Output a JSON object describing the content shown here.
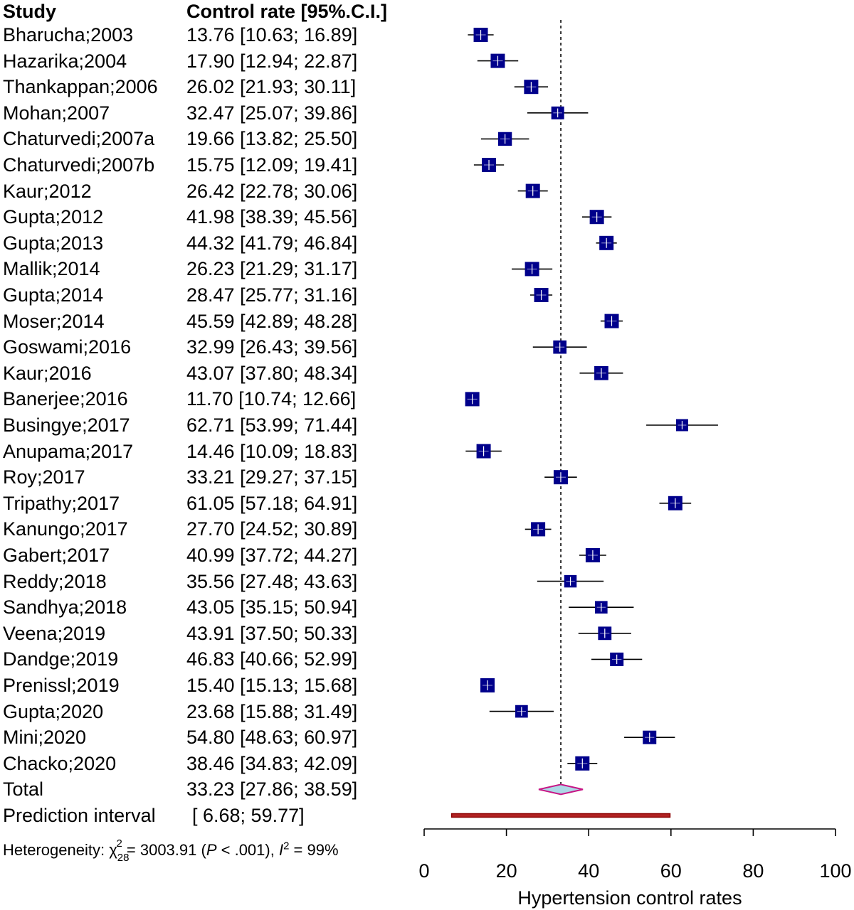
{
  "headers": {
    "study": "Study",
    "ci": "Control rate [95%.C.I.]"
  },
  "chart_data": {
    "type": "forest",
    "xlabel": "Hypertension control rates",
    "xlim": [
      0,
      100
    ],
    "xticks": [
      0,
      20,
      40,
      60,
      80,
      100
    ],
    "xtick_labels": [
      "0",
      "20",
      "40",
      "60",
      "80",
      "100"
    ],
    "reference_line": 33.23,
    "studies": [
      {
        "label": "Bharucha;2003",
        "est": 13.76,
        "lo": 10.63,
        "hi": 16.89,
        "ci_text": "13.76 [10.63; 16.89]"
      },
      {
        "label": "Hazarika;2004",
        "est": 17.9,
        "lo": 12.94,
        "hi": 22.87,
        "ci_text": "17.90 [12.94; 22.87]"
      },
      {
        "label": "Thankappan;2006",
        "est": 26.02,
        "lo": 21.93,
        "hi": 30.11,
        "ci_text": "26.02 [21.93; 30.11]"
      },
      {
        "label": "Mohan;2007",
        "est": 32.47,
        "lo": 25.07,
        "hi": 39.86,
        "ci_text": "32.47 [25.07; 39.86]"
      },
      {
        "label": "Chaturvedi;2007a",
        "est": 19.66,
        "lo": 13.82,
        "hi": 25.5,
        "ci_text": "19.66 [13.82; 25.50]"
      },
      {
        "label": "Chaturvedi;2007b",
        "est": 15.75,
        "lo": 12.09,
        "hi": 19.41,
        "ci_text": "15.75 [12.09; 19.41]"
      },
      {
        "label": "Kaur;2012",
        "est": 26.42,
        "lo": 22.78,
        "hi": 30.06,
        "ci_text": "26.42 [22.78; 30.06]"
      },
      {
        "label": "Gupta;2012",
        "est": 41.98,
        "lo": 38.39,
        "hi": 45.56,
        "ci_text": "41.98 [38.39; 45.56]"
      },
      {
        "label": "Gupta;2013",
        "est": 44.32,
        "lo": 41.79,
        "hi": 46.84,
        "ci_text": "44.32 [41.79; 46.84]"
      },
      {
        "label": "Mallik;2014",
        "est": 26.23,
        "lo": 21.29,
        "hi": 31.17,
        "ci_text": "26.23 [21.29; 31.17]"
      },
      {
        "label": "Gupta;2014",
        "est": 28.47,
        "lo": 25.77,
        "hi": 31.16,
        "ci_text": "28.47 [25.77; 31.16]"
      },
      {
        "label": "Moser;2014",
        "est": 45.59,
        "lo": 42.89,
        "hi": 48.28,
        "ci_text": "45.59 [42.89; 48.28]"
      },
      {
        "label": "Goswami;2016",
        "est": 32.99,
        "lo": 26.43,
        "hi": 39.56,
        "ci_text": "32.99 [26.43; 39.56]"
      },
      {
        "label": "Kaur;2016",
        "est": 43.07,
        "lo": 37.8,
        "hi": 48.34,
        "ci_text": "43.07 [37.80; 48.34]"
      },
      {
        "label": "Banerjee;2016",
        "est": 11.7,
        "lo": 10.74,
        "hi": 12.66,
        "ci_text": "11.70 [10.74; 12.66]"
      },
      {
        "label": "Busingye;2017",
        "est": 62.71,
        "lo": 53.99,
        "hi": 71.44,
        "ci_text": "62.71 [53.99; 71.44]"
      },
      {
        "label": "Anupama;2017",
        "est": 14.46,
        "lo": 10.09,
        "hi": 18.83,
        "ci_text": "14.46 [10.09; 18.83]"
      },
      {
        "label": "Roy;2017",
        "est": 33.21,
        "lo": 29.27,
        "hi": 37.15,
        "ci_text": "33.21 [29.27; 37.15]"
      },
      {
        "label": "Tripathy;2017",
        "est": 61.05,
        "lo": 57.18,
        "hi": 64.91,
        "ci_text": "61.05 [57.18; 64.91]"
      },
      {
        "label": "Kanungo;2017",
        "est": 27.7,
        "lo": 24.52,
        "hi": 30.89,
        "ci_text": "27.70 [24.52; 30.89]"
      },
      {
        "label": "Gabert;2017",
        "est": 40.99,
        "lo": 37.72,
        "hi": 44.27,
        "ci_text": "40.99 [37.72; 44.27]"
      },
      {
        "label": "Reddy;2018",
        "est": 35.56,
        "lo": 27.48,
        "hi": 43.63,
        "ci_text": "35.56 [27.48; 43.63]"
      },
      {
        "label": "Sandhya;2018",
        "est": 43.05,
        "lo": 35.15,
        "hi": 50.94,
        "ci_text": "43.05 [35.15; 50.94]"
      },
      {
        "label": "Veena;2019",
        "est": 43.91,
        "lo": 37.5,
        "hi": 50.33,
        "ci_text": "43.91 [37.50; 50.33]"
      },
      {
        "label": "Dandge;2019",
        "est": 46.83,
        "lo": 40.66,
        "hi": 52.99,
        "ci_text": "46.83 [40.66; 52.99]"
      },
      {
        "label": "Prenissl;2019",
        "est": 15.4,
        "lo": 15.13,
        "hi": 15.68,
        "ci_text": "15.40 [15.13; 15.68]"
      },
      {
        "label": "Gupta;2020",
        "est": 23.68,
        "lo": 15.88,
        "hi": 31.49,
        "ci_text": "23.68 [15.88; 31.49]"
      },
      {
        "label": "Mini;2020",
        "est": 54.8,
        "lo": 48.63,
        "hi": 60.97,
        "ci_text": "54.80 [48.63; 60.97]"
      },
      {
        "label": "Chacko;2020",
        "est": 38.46,
        "lo": 34.83,
        "hi": 42.09,
        "ci_text": "38.46 [34.83; 42.09]"
      }
    ],
    "total": {
      "label": "Total",
      "est": 33.23,
      "lo": 27.86,
      "hi": 38.59,
      "ci_text": "33.23 [27.86; 38.59]"
    },
    "prediction": {
      "label": "Prediction interval",
      "lo": 6.68,
      "hi": 59.77,
      "ci_text": "[ 6.68; 59.77]"
    },
    "heterogeneity": {
      "prefix": "Heterogeneity: χ",
      "chi_sup": "2",
      "chi_sub": "28",
      "chi_value": " = 3003.91 (",
      "p_label": "P",
      "p_value": " < .001), ",
      "i_label": "I",
      "i_sup": "2",
      "i_value": " = 99%"
    },
    "colors": {
      "square": "#00008b",
      "diamond_fill": "#add8e6",
      "diamond_stroke": "#c71585",
      "prediction_fill": "#b22222",
      "prediction_stroke": "#8b0000"
    }
  }
}
